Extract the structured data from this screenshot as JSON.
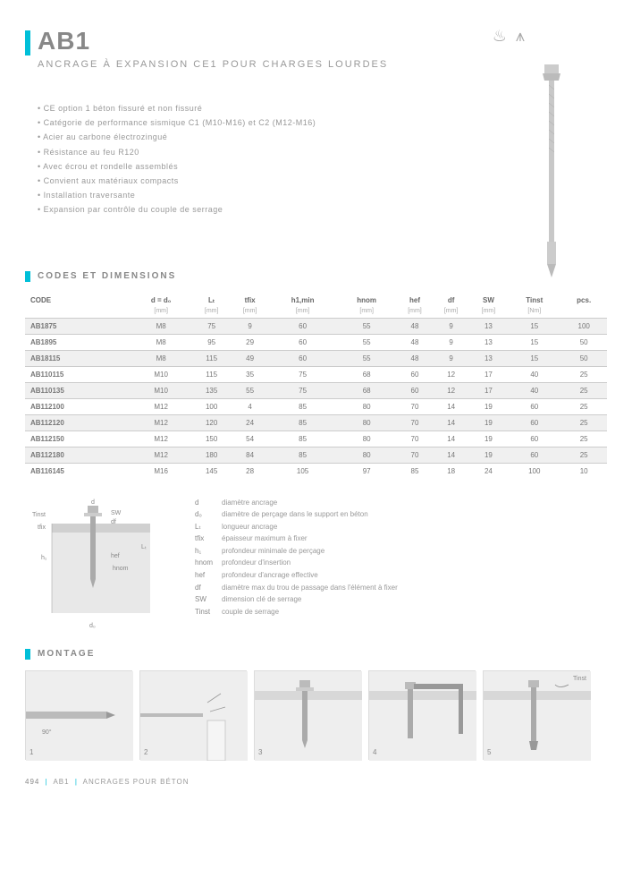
{
  "header": {
    "title": "AB1",
    "subtitle": "ANCRAGE À EXPANSION CE1 POUR CHARGES LOURDES"
  },
  "features": [
    "CE option 1 béton fissuré et non fissuré",
    "Catégorie de performance sismique C1 (M10-M16) et C2 (M12-M16)",
    "Acier au carbone électrozingué",
    "Résistance au feu R120",
    "Avec écrou et rondelle assemblés",
    "Convient aux matériaux compacts",
    "Installation traversante",
    "Expansion par contrôle du couple de serrage"
  ],
  "sections": {
    "codes": "CODES ET DIMENSIONS",
    "montage": "MONTAGE"
  },
  "table": {
    "headers": [
      "CODE",
      "d = d₀",
      "Lₜ",
      "tfix",
      "h1,min",
      "hnom",
      "hef",
      "df",
      "SW",
      "Tinst",
      "pcs."
    ],
    "units": [
      "",
      "[mm]",
      "[mm]",
      "[mm]",
      "[mm]",
      "[mm]",
      "[mm]",
      "[mm]",
      "[mm]",
      "[Nm]",
      ""
    ],
    "rows": [
      [
        "AB1875",
        "M8",
        "75",
        "9",
        "60",
        "55",
        "48",
        "9",
        "13",
        "15",
        "100"
      ],
      [
        "AB1895",
        "M8",
        "95",
        "29",
        "60",
        "55",
        "48",
        "9",
        "13",
        "15",
        "50"
      ],
      [
        "AB18115",
        "M8",
        "115",
        "49",
        "60",
        "55",
        "48",
        "9",
        "13",
        "15",
        "50"
      ],
      [
        "AB110115",
        "M10",
        "115",
        "35",
        "75",
        "68",
        "60",
        "12",
        "17",
        "40",
        "25"
      ],
      [
        "AB110135",
        "M10",
        "135",
        "55",
        "75",
        "68",
        "60",
        "12",
        "17",
        "40",
        "25"
      ],
      [
        "AB112100",
        "M12",
        "100",
        "4",
        "85",
        "80",
        "70",
        "14",
        "19",
        "60",
        "25"
      ],
      [
        "AB112120",
        "M12",
        "120",
        "24",
        "85",
        "80",
        "70",
        "14",
        "19",
        "60",
        "25"
      ],
      [
        "AB112150",
        "M12",
        "150",
        "54",
        "85",
        "80",
        "70",
        "14",
        "19",
        "60",
        "25"
      ],
      [
        "AB112180",
        "M12",
        "180",
        "84",
        "85",
        "80",
        "70",
        "14",
        "19",
        "60",
        "25"
      ],
      [
        "AB116145",
        "M16",
        "145",
        "28",
        "105",
        "97",
        "85",
        "18",
        "24",
        "100",
        "10"
      ]
    ]
  },
  "legend": [
    {
      "sym": "d",
      "desc": "diamètre ancrage"
    },
    {
      "sym": "d₀",
      "desc": "diamètre de perçage dans le support en béton"
    },
    {
      "sym": "Lₜ",
      "desc": "longueur ancrage"
    },
    {
      "sym": "tfix",
      "desc": "épaisseur maximum à fixer"
    },
    {
      "sym": "h₁",
      "desc": "profondeur minimale de perçage"
    },
    {
      "sym": "hnom",
      "desc": "profondeur d'insertion"
    },
    {
      "sym": "hef",
      "desc": "profondeur d'ancrage effective"
    },
    {
      "sym": "df",
      "desc": "diamètre max du trou de passage dans l'élément à fixer"
    },
    {
      "sym": "SW",
      "desc": "dimension clé de serrage"
    },
    {
      "sym": "Tinst",
      "desc": "couple de serrage"
    }
  ],
  "dim_labels": {
    "d": "d",
    "d0": "d₀",
    "Lt": "Lₜ",
    "Tinst": "Tinst",
    "SW": "SW",
    "df": "df",
    "tfix": "tfix",
    "h1": "h₁",
    "hef": "hef",
    "hnom": "hnom"
  },
  "montage": {
    "steps": [
      "1",
      "2",
      "3",
      "4",
      "5"
    ],
    "angle": "90°",
    "torque": "Tinst"
  },
  "footer": {
    "page": "494",
    "code": "AB1",
    "section": "ANCRAGES POUR BÉTON"
  },
  "colors": {
    "accent": "#00bfd8",
    "text": "#888",
    "light": "#999",
    "row_bg": "#f0f0f0",
    "border": "#ccc"
  }
}
